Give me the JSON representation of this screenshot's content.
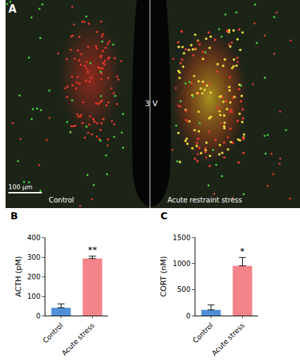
{
  "image_panel": {
    "label": "A",
    "left_label": "Control",
    "right_label": "Acute restraint stress",
    "center_label": "3 V",
    "scale_bar": "100 μm"
  },
  "chart_data": [
    {
      "type": "bar",
      "title": "B",
      "categories": [
        "Control",
        "Acute stress"
      ],
      "values": [
        40,
        292
      ],
      "errors": [
        20,
        12
      ],
      "colors": [
        "#4f8fd8",
        "#f4848a"
      ],
      "y_label": "ACTH (pM)",
      "ylim": [
        0,
        400
      ],
      "yticks": [
        0,
        100,
        200,
        300,
        400
      ],
      "grid": false,
      "annotations": [
        {
          "category": "Acute stress",
          "text": "**"
        }
      ]
    },
    {
      "type": "bar",
      "title": "C",
      "categories": [
        "Control",
        "Acute stress"
      ],
      "values": [
        110,
        955
      ],
      "errors": [
        95,
        160
      ],
      "colors": [
        "#4f8fd8",
        "#f4848a"
      ],
      "y_label": "CORT (nM)",
      "ylim": [
        0,
        1500
      ],
      "yticks": [
        0,
        500,
        1000,
        1500
      ],
      "grid": false,
      "annotations": [
        {
          "category": "Acute stress",
          "text": "*"
        }
      ]
    }
  ]
}
